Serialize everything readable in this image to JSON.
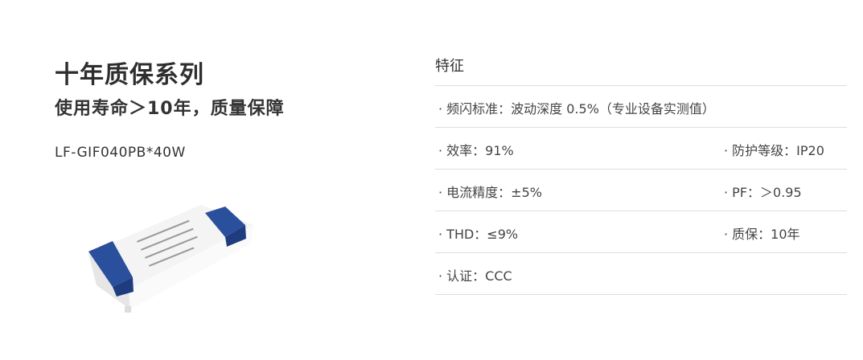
{
  "hero": {
    "title": "十年质保系列",
    "subtitle": "使用寿命＞10年，质量保障",
    "model": "LF-GIF040PB*40W"
  },
  "features": {
    "heading": "特征",
    "rows": [
      [
        "· 频闪标准：波动深度 0.5%（专业设备实测值）",
        ""
      ],
      [
        "· 效率：91%",
        "· 防护等级：IP20"
      ],
      [
        "· 电流精度：±5%",
        "· PF：＞0.95"
      ],
      [
        "· THD：≤9%",
        "· 质保：10年"
      ],
      [
        "· 认证：CCC",
        ""
      ]
    ]
  },
  "colors": {
    "cap_blue": "#2a4f9c",
    "divider": "#dddddd"
  }
}
